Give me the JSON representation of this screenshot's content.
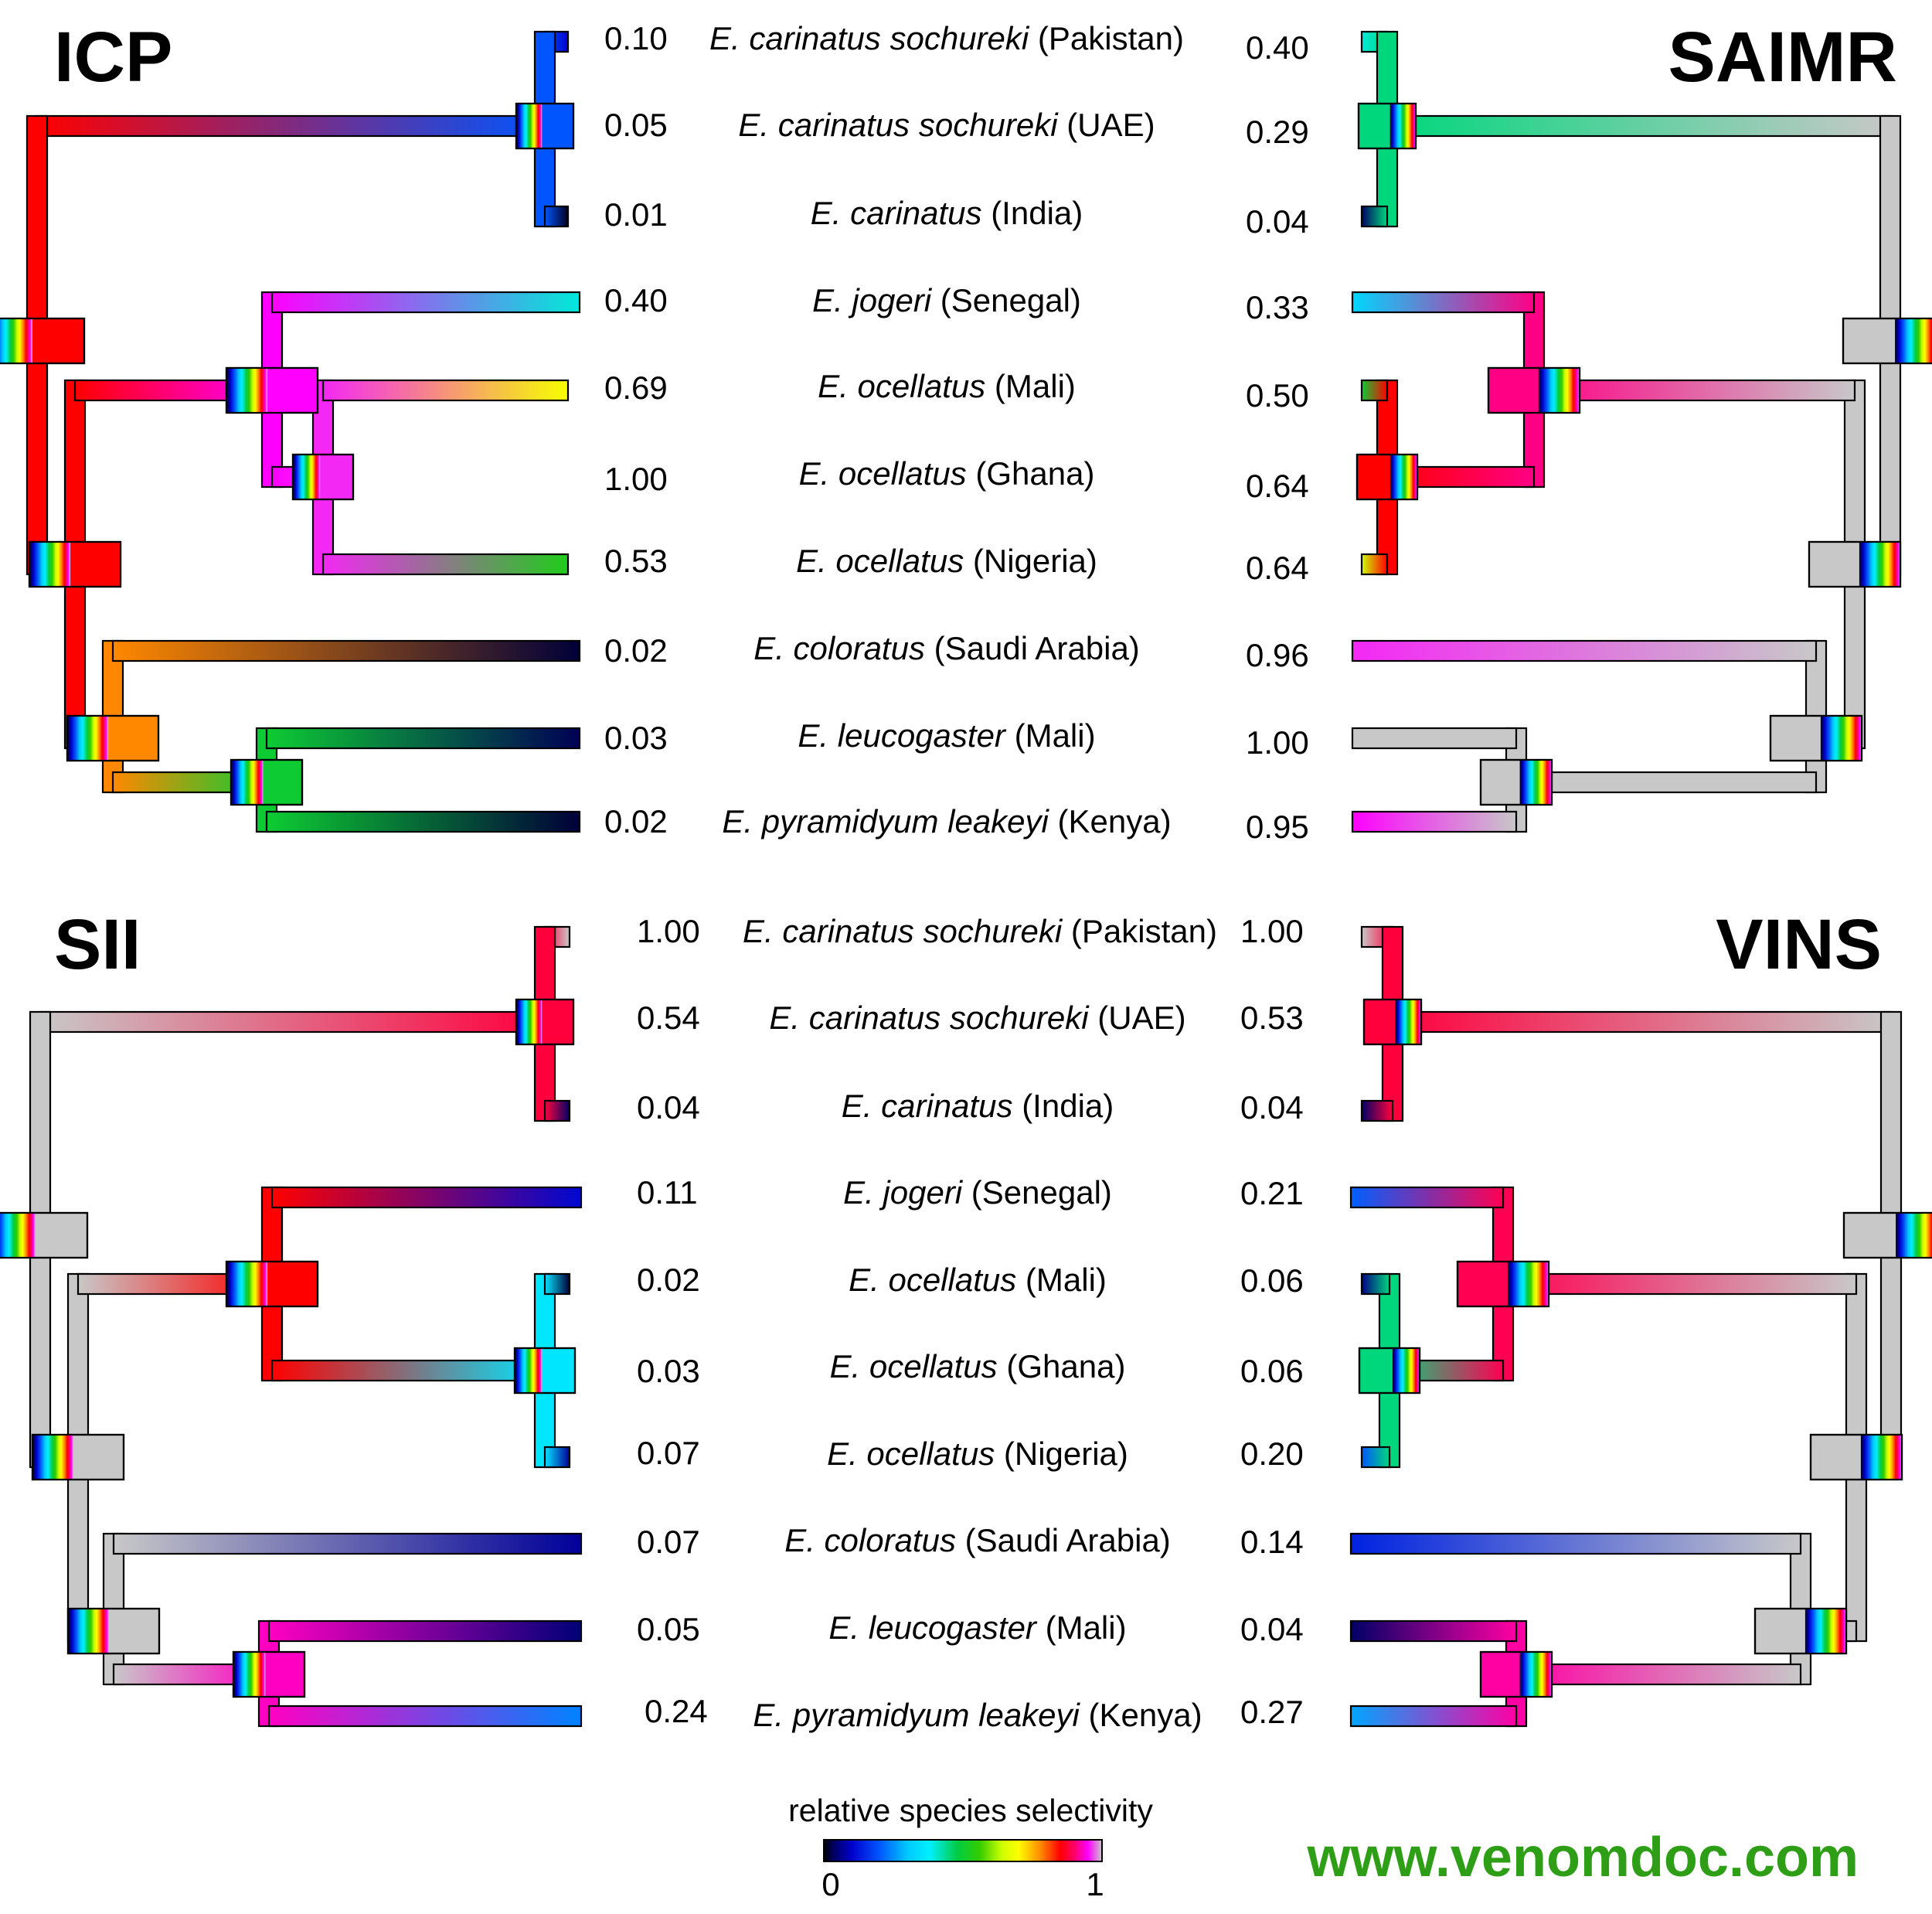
{
  "colormap": {
    "stops": [
      [
        0.0,
        "#000000"
      ],
      [
        0.03,
        "#000055"
      ],
      [
        0.1,
        "#0000cc"
      ],
      [
        0.2,
        "#0055ff"
      ],
      [
        0.3,
        "#00c8ff"
      ],
      [
        0.38,
        "#00f0ff"
      ],
      [
        0.48,
        "#00cc44"
      ],
      [
        0.56,
        "#33cc00"
      ],
      [
        0.64,
        "#ccff00"
      ],
      [
        0.7,
        "#ffff00"
      ],
      [
        0.78,
        "#ff8800"
      ],
      [
        0.85,
        "#ff0000"
      ],
      [
        0.9,
        "#ff0066"
      ],
      [
        0.95,
        "#ff00ff"
      ],
      [
        1.0,
        "#c8c8c8"
      ]
    ]
  },
  "taxa": [
    {
      "italic": "E. carinatus sochureki",
      "region": " (Pakistan)"
    },
    {
      "italic": "E. carinatus sochureki",
      "region": " (UAE)"
    },
    {
      "italic": "E. carinatus",
      "region": " (India)"
    },
    {
      "italic": "E. jogeri",
      "region": " (Senegal)"
    },
    {
      "italic": "E. ocellatus",
      "region": " (Mali)"
    },
    {
      "italic": "E. ocellatus",
      "region": " (Ghana)"
    },
    {
      "italic": "E. ocellatus",
      "region": " (Nigeria)"
    },
    {
      "italic": "E. coloratus",
      "region": " (Saudi Arabia)"
    },
    {
      "italic": "E. leucogaster",
      "region": " (Mali)"
    },
    {
      "italic": "E. pyramidyum leakeyi",
      "region": " (Kenya)"
    }
  ],
  "panels": {
    "icp": {
      "title": "ICP",
      "values": [
        "0.10",
        "0.05",
        "0.01",
        "0.40",
        "0.69",
        "1.00",
        "0.53",
        "0.02",
        "0.03",
        "0.02"
      ],
      "tip_numeric": [
        0.1,
        0.05,
        0.01,
        0.4,
        0.69,
        1.0,
        0.53,
        0.02,
        0.03,
        0.02
      ]
    },
    "saimr": {
      "title": "SAIMR",
      "values": [
        "0.40",
        "0.29",
        "0.04",
        "0.33",
        "0.50",
        "0.64",
        "0.64",
        "0.96",
        "1.00",
        "0.95"
      ],
      "tip_numeric": [
        0.4,
        0.29,
        0.04,
        0.33,
        0.5,
        0.64,
        0.64,
        0.96,
        1.0,
        0.95
      ]
    },
    "sii": {
      "title": "SII",
      "values": [
        "1.00",
        "0.54",
        "0.04",
        "0.11",
        "0.02",
        "0.03",
        "0.07",
        "0.07",
        "0.05",
        "0.24"
      ],
      "tip_numeric": [
        1.0,
        0.54,
        0.04,
        0.11,
        0.02,
        0.03,
        0.07,
        0.07,
        0.05,
        0.24
      ]
    },
    "vins": {
      "title": "VINS",
      "values": [
        "1.00",
        "0.53",
        "0.04",
        "0.21",
        "0.06",
        "0.06",
        "0.20",
        "0.14",
        "0.04",
        "0.27"
      ],
      "tip_numeric": [
        1.0,
        0.53,
        0.04,
        0.21,
        0.06,
        0.06,
        0.2,
        0.14,
        0.04,
        0.27
      ]
    }
  },
  "legend": {
    "title": "relative species selectivity",
    "min_label": "0",
    "max_label": "1"
  },
  "website": "www.venomdoc.com"
}
